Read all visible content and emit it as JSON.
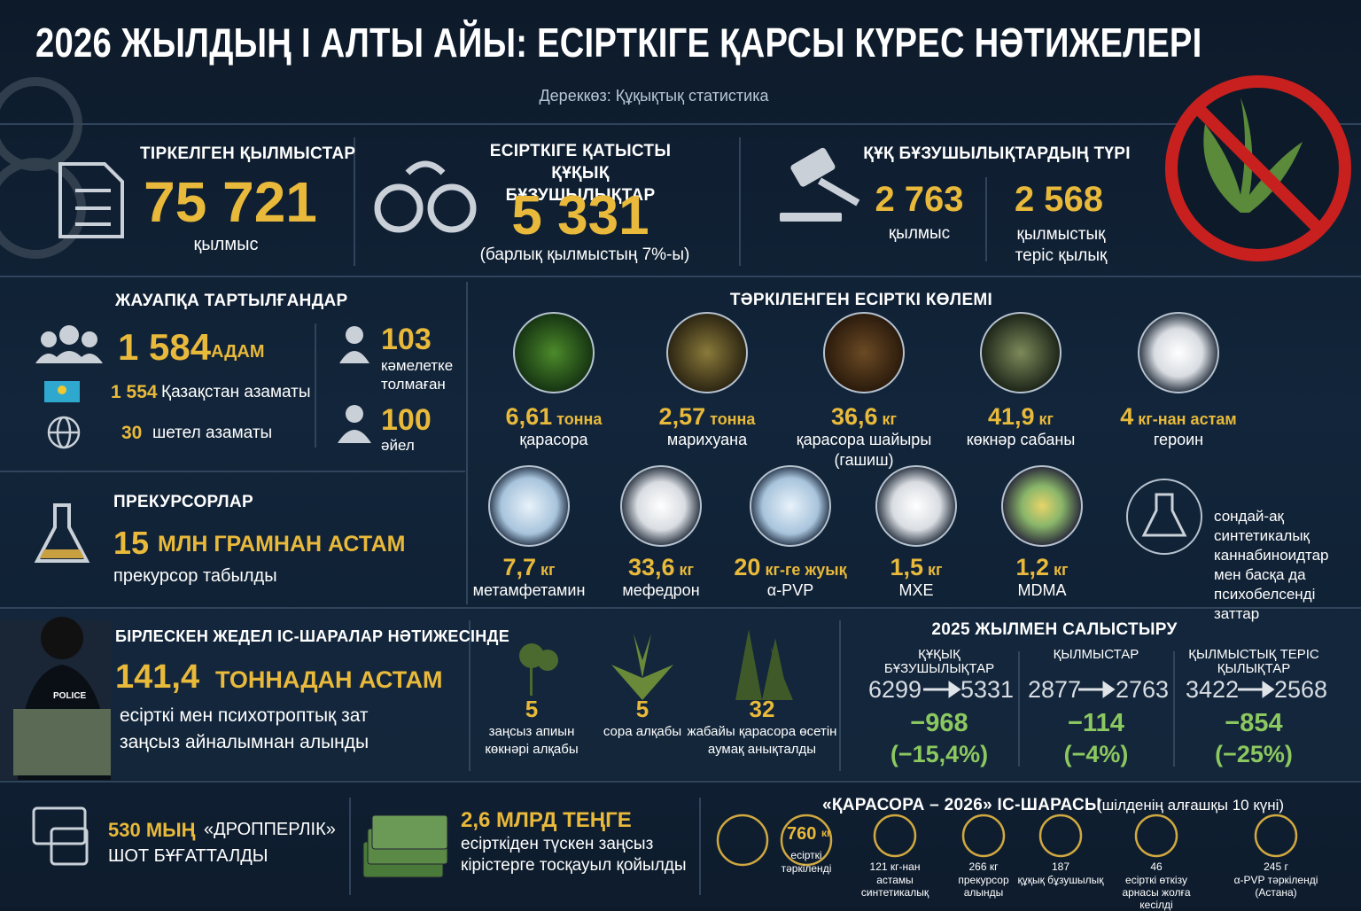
{
  "header": {
    "title": "2026 ЖЫЛДЫҢ І АЛТЫ АЙЫ: ЕСІРТКІГЕ ҚАРСЫ КҮРЕС НӘТИЖЕЛЕРІ",
    "source": "Дереккөз:  Құқықтық статистика"
  },
  "stats": [
    {
      "label": "ТІРКЕЛГЕН ҚЫЛМЫСТАР",
      "value": "75 721",
      "unit": "қылмыс"
    },
    {
      "label": "ЕСІРТКІГЕ ҚАТЫСТЫ ҚҰҚЫҚ БҰЗУШЫЛЫҚТАР",
      "value": "5 331",
      "note": "(барлық қылмыстың 7%-ы)"
    },
    {
      "label": "ҚҰҚ БҰЗУШЫЛЫҚТАРДЫҢ ТҮРІ",
      "items": [
        {
          "value": "2 763",
          "label": "қылмыс"
        },
        {
          "value": "2 568",
          "label": "қылмыстық теріс қылық"
        }
      ]
    }
  ],
  "accused": {
    "title": "ЖАУАПҚА ТАРТЫЛҒАНДАР",
    "total": {
      "value": "1 584",
      "unit": "АДАМ"
    },
    "citizens": {
      "value": "1 554",
      "label": "Қазақстан азаматы"
    },
    "foreign": {
      "value": "30",
      "label": "шетел азаматы"
    },
    "minors": {
      "value": "103",
      "label": "кәмелетке толмаған"
    },
    "women": {
      "value": "100",
      "label": "әйел"
    }
  },
  "precursors": {
    "title": "ПРЕКУРСОРЛАР",
    "value": "15",
    "unit": "МЛН ГРАМНАН АСТАМ",
    "label": "прекурсор табылды"
  },
  "seized": {
    "title": "ТӘРКІЛЕНГЕН ЕСІРТКІ КӨЛЕМІ",
    "items": [
      {
        "value": "6,61",
        "unit": "тонна",
        "name": "қарасора"
      },
      {
        "value": "2,57",
        "unit": "тонна",
        "name": "марихуана"
      },
      {
        "value": "36,6",
        "unit": "кг",
        "name": "қарасора шайыры (гашиш)"
      },
      {
        "value": "41,9",
        "unit": "кг",
        "name": "көкнәр сабаны"
      },
      {
        "value": "4",
        "unit": "кг-нан астам",
        "name": "героин"
      },
      {
        "value": "7,7",
        "unit": "кг",
        "name": "метамфетамин"
      },
      {
        "value": "33,6",
        "unit": "кг",
        "name": "мефедрон"
      },
      {
        "value": "20",
        "unit": "кг-ге жуық",
        "name": "α-PVP"
      },
      {
        "value": "1,5",
        "unit": "кг",
        "name": "MXE"
      },
      {
        "value": "1,2",
        "unit": "кг",
        "name": "MDMA"
      }
    ],
    "other": "сондай-ақ синтетикалық каннабиноидтар мен басқа да психобелсенді заттар"
  },
  "operations": {
    "title": "БІРЛЕСКЕН ЖЕДЕЛ ІС-ШАРАЛАР НӘТИЖЕСІНДЕ",
    "badge": "POLICE",
    "value": "141,4",
    "unit": "ТОННАДАН АСТАМ",
    "label": "есірткі мен психотроптық зат заңсыз айналымнан алынды"
  },
  "fields": [
    {
      "value": "5",
      "label": "заңсыз апиын көкнәрі алқабы"
    },
    {
      "value": "5",
      "label": "сора алқабы"
    },
    {
      "value": "32",
      "label": "жабайы қарасора өсетін аумақ анықталды"
    }
  ],
  "comparison": {
    "title": "2025 ЖЫЛМЕН САЛЫСТЫРУ",
    "items": [
      {
        "label": "ҚҰҚЫҚ БҰЗУШЫЛЫҚТАР",
        "from": "6299",
        "to": "5331",
        "change": "−968",
        "percent": "(−15,4%)"
      },
      {
        "label": "ҚЫЛМЫСТАР",
        "from": "2877",
        "to": "2763",
        "change": "−114",
        "percent": "(−4%)"
      },
      {
        "label": "ҚЫЛМЫСТЫҚ ТЕРІС ҚЫЛЫҚТАР",
        "from": "3422",
        "to": "2568",
        "change": "−854",
        "percent": "(−25%)"
      }
    ]
  },
  "accounts": {
    "value": "530 МЫҢ",
    "label": "«ДРОППЕРЛІК»",
    "label2": "ШОТ БҰҒАТТАЛДЫ"
  },
  "money": {
    "value": "2,6 МЛРД ТЕҢГЕ",
    "label": "есірткіден түскен заңсыз кірістерге тосқауыл қойылды"
  },
  "operation": {
    "title": "«ҚАРАСОРА – 2026» ІС-ШАРАСЫ",
    "subtitle": "(шілденің алғашқы 10 күні)",
    "items": [
      {
        "value": "760",
        "unit": "кг",
        "label": "есірткі тәркіленді"
      },
      {
        "value": "121 кг-нан",
        "label": "астамы синтетикалық"
      },
      {
        "value": "266 кг",
        "label": "прекурсор алынды"
      },
      {
        "value": "187",
        "label": "құқық бұзушылық"
      },
      {
        "value": "46",
        "label": "есірткі өткізу арнасы жолға кесілді"
      },
      {
        "value": "245 г",
        "label": "α-PVP тәркіленді (Астана)"
      }
    ]
  }
}
